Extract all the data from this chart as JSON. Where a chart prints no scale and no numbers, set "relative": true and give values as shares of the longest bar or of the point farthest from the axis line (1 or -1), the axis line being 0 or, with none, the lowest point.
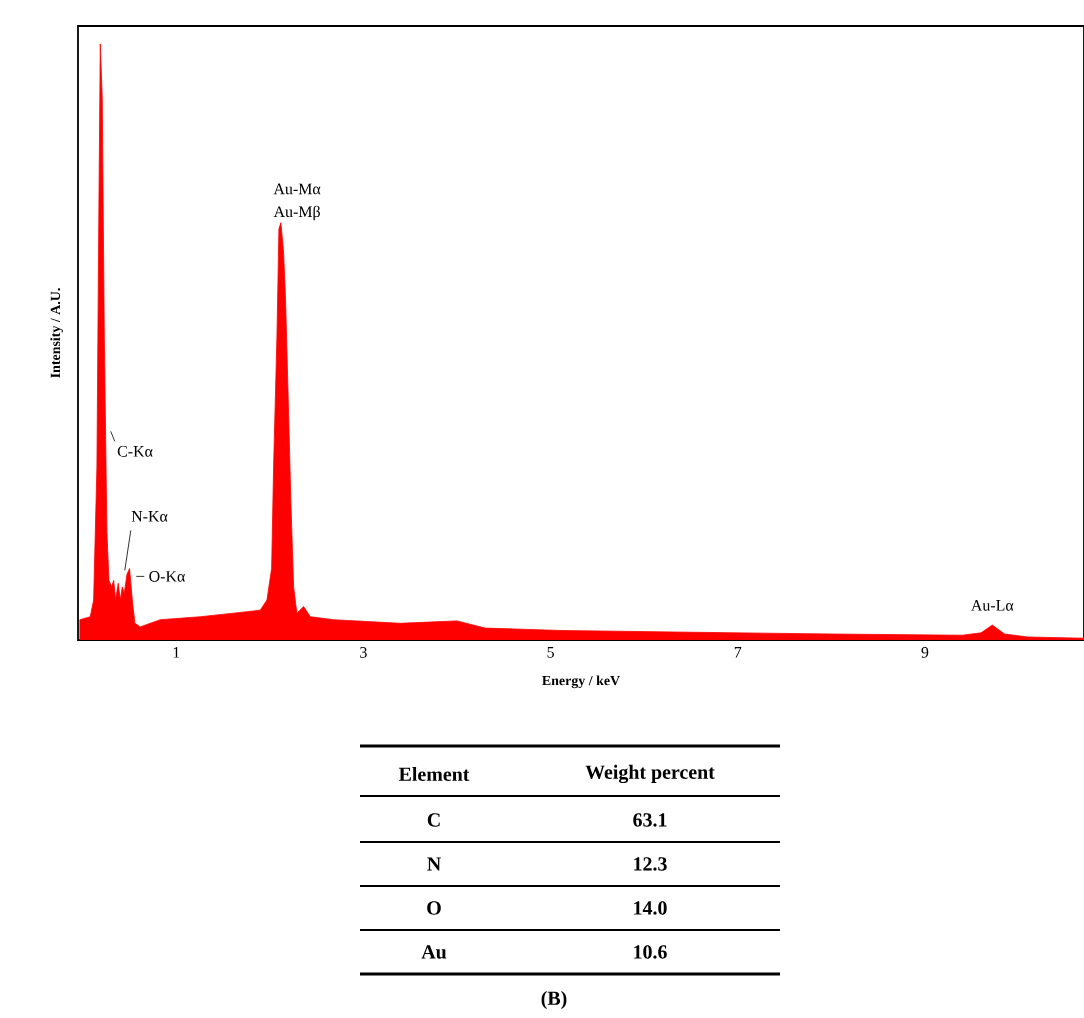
{
  "chart_data": [
    {
      "type": "area",
      "xlabel": "Energy / keV",
      "ylabel": "Intensity / A.U.",
      "relative": true,
      "xlim": [
        -0.05,
        10.7
      ],
      "xticks": [
        1,
        3,
        5,
        7,
        9
      ],
      "series": [
        {
          "color": "#ff0000",
          "x": [
            -0.03,
            0.081,
            0.117,
            0.152,
            0.174,
            0.188,
            0.209,
            0.231,
            0.259,
            0.281,
            0.309,
            0.331,
            0.352,
            0.38,
            0.402,
            0.423,
            0.444,
            0.473,
            0.501,
            0.53,
            0.558,
            0.615,
            0.829,
            1.256,
            1.613,
            1.897,
            1.969,
            2.019,
            2.04,
            2.076,
            2.097,
            2.118,
            2.147,
            2.168,
            2.197,
            2.225,
            2.254,
            2.289,
            2.361,
            2.432,
            2.681,
            3.393,
            3.7,
            4.0,
            4.3,
            5.1,
            6.5,
            8.0,
            9.4,
            9.6,
            9.72,
            9.85,
            10.1,
            10.7
          ],
          "values": [
            0.034,
            0.039,
            0.067,
            0.29,
            0.74,
            1.0,
            0.91,
            0.51,
            0.18,
            0.1,
            0.089,
            0.1,
            0.067,
            0.095,
            0.067,
            0.089,
            0.078,
            0.11,
            0.12,
            0.067,
            0.028,
            0.022,
            0.034,
            0.039,
            0.045,
            0.05,
            0.067,
            0.12,
            0.29,
            0.51,
            0.69,
            0.7,
            0.65,
            0.57,
            0.4,
            0.23,
            0.089,
            0.045,
            0.056,
            0.039,
            0.034,
            0.028,
            0.03,
            0.032,
            0.02,
            0.016,
            0.013,
            0.01,
            0.008,
            0.012,
            0.025,
            0.01,
            0.005,
            0.003
          ]
        }
      ],
      "annotations": [
        {
          "text": "C-Kα",
          "x": 0.3,
          "y": 0.35
        },
        {
          "text": "N-Kα",
          "x": 0.45,
          "y": 0.11
        },
        {
          "text": "O-Kα",
          "x": 0.53,
          "y": 0.1
        },
        {
          "text": "Au-Mα",
          "x": 2.12,
          "y": 0.7
        },
        {
          "text": "Au-Mβ",
          "x": 2.12,
          "y": 0.7
        },
        {
          "text": "Au-Lα",
          "x": 9.72,
          "y": 0.025
        }
      ]
    },
    {
      "type": "other",
      "xlabel": "Element",
      "ylabel": "Weight percent",
      "categories": [
        "C",
        "N",
        "O",
        "Au"
      ],
      "annotations": [
        "63.1",
        "12.3",
        "14.0",
        "10.6",
        "(B)"
      ]
    }
  ]
}
